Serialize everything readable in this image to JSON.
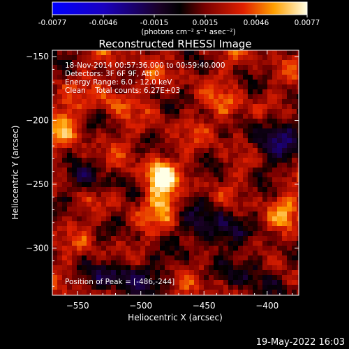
{
  "colorbar": {
    "ticks": [
      "-0.0077",
      "-0.0046",
      "-0.0015",
      "0.0015",
      "0.0046",
      "0.0077"
    ],
    "unit_label": "(photons cm⁻² s⁻¹ asec⁻²)"
  },
  "chart_data": {
    "type": "heatmap",
    "title": "Reconstructed RHESSI Image",
    "xlabel": "Heliocentric X (arcsec)",
    "ylabel": "Heliocentric Y (arcsec)",
    "xlim": [
      -570,
      -375
    ],
    "ylim": [
      -337,
      -145
    ],
    "xticks": [
      -550,
      -500,
      -450,
      -400
    ],
    "yticks": [
      -150,
      -200,
      -250,
      -300
    ],
    "xtick_labels": [
      "−550",
      "−500",
      "−450",
      "−400"
    ],
    "ytick_labels": [
      "−150",
      "−200",
      "−250",
      "−300"
    ],
    "value_range": [
      -0.0077,
      0.0077
    ],
    "peak_position": [
      -486,
      -244
    ],
    "hot_spots": [
      {
        "x": -486,
        "y": -244,
        "value": 0.0077
      },
      {
        "x": -481,
        "y": -265,
        "value": 0.0055
      },
      {
        "x": -562,
        "y": -200,
        "value": 0.0048
      },
      {
        "x": -522,
        "y": -182,
        "value": 0.004
      },
      {
        "x": -430,
        "y": -193,
        "value": 0.0042
      },
      {
        "x": -386,
        "y": -268,
        "value": 0.0045
      }
    ],
    "annotations": [
      "18-Nov-2014 00:57:36.000 to 00:59:40.000",
      "Detectors: 3F 6F 9F, Att 0",
      "Energy Range: 6.0 - 12.0 keV",
      "Clean    Total counts: 6.27E+03",
      "Position of Peak = [-486,-244]"
    ]
  },
  "footer": {
    "timestamp": "19-May-2022 16:03"
  }
}
